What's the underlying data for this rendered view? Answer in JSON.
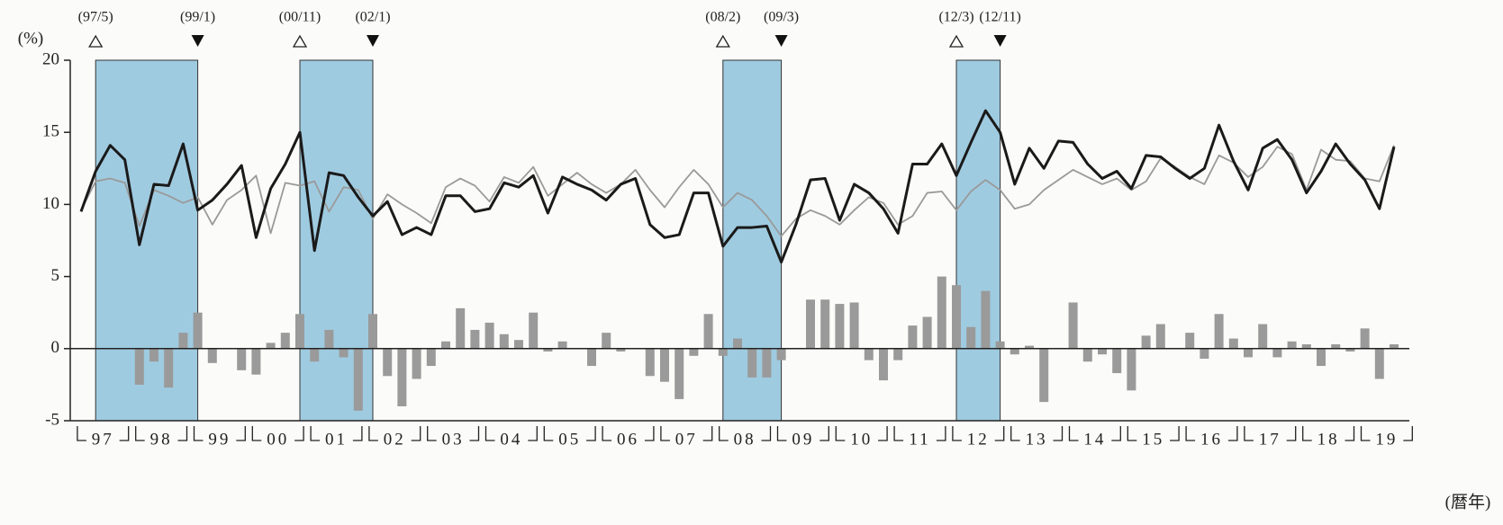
{
  "chart_data": {
    "type": "combo",
    "y_label": "(%)",
    "x_label": "(暦年)",
    "ylim": [
      -5,
      20
    ],
    "yticks": [
      -5,
      0,
      5,
      10,
      15,
      20
    ],
    "categories": [
      null,
      "97",
      null,
      null,
      null,
      "98",
      null,
      null,
      null,
      "99",
      null,
      null,
      null,
      "00",
      null,
      null,
      null,
      "01",
      null,
      null,
      null,
      "02",
      null,
      null,
      null,
      "03",
      null,
      null,
      null,
      "04",
      null,
      null,
      null,
      "05",
      null,
      null,
      null,
      "06",
      null,
      null,
      null,
      "07",
      null,
      null,
      null,
      "08",
      null,
      null,
      null,
      "09",
      null,
      null,
      null,
      "10",
      null,
      null,
      null,
      "11",
      null,
      null,
      null,
      "12",
      null,
      null,
      null,
      "13",
      null,
      null,
      null,
      "14",
      null,
      null,
      null,
      "15",
      null,
      null,
      null,
      "16",
      null,
      null,
      null,
      "17",
      null,
      null,
      null,
      "18",
      null,
      null,
      null,
      "19",
      null
    ],
    "series": [
      {
        "kind": "bar",
        "color": "#9a9a9a",
        "values": [
          0,
          0,
          0,
          0,
          -2.5,
          -0.9,
          -2.7,
          1.1,
          2.5,
          -1.0,
          0,
          -1.5,
          -1.8,
          0.4,
          1.1,
          2.4,
          -0.9,
          1.3,
          -0.6,
          -4.3,
          2.4,
          -1.9,
          -4.0,
          -2.1,
          -1.2,
          0.5,
          2.8,
          1.3,
          1.8,
          1.0,
          0.6,
          2.5,
          -0.2,
          0.5,
          0,
          -1.2,
          1.1,
          -0.2,
          0,
          -1.9,
          -2.3,
          -3.5,
          -0.5,
          2.4,
          -0.5,
          0.7,
          -2.0,
          -2.0,
          -0.8,
          0,
          3.4,
          3.4,
          3.1,
          3.2,
          -0.8,
          -2.2,
          -0.8,
          1.6,
          2.2,
          5.0,
          4.4,
          1.5,
          4.0,
          0.5,
          -0.4,
          0.2,
          -3.7,
          0,
          3.2,
          -0.9,
          -0.4,
          -1.7,
          -2.9,
          0.9,
          1.7,
          0,
          1.1,
          -0.7,
          2.4,
          0.7,
          -0.6,
          1.7,
          -0.6,
          0.5,
          0.3,
          -1.2,
          0.3,
          -0.2,
          1.4,
          -2.1,
          0.3
        ]
      },
      {
        "kind": "line",
        "color": "#9a9a9a",
        "values": [
          9.6,
          11.6,
          11.8,
          11.5,
          8.5,
          11.0,
          10.6,
          10.1,
          10.5,
          8.6,
          10.3,
          11.0,
          12.0,
          8.0,
          11.5,
          11.3,
          11.6,
          9.5,
          11.2,
          11.0,
          9.0,
          10.7,
          10.0,
          9.4,
          8.7,
          11.2,
          11.8,
          11.3,
          10.2,
          11.9,
          11.5,
          12.6,
          10.6,
          11.4,
          12.2,
          11.4,
          10.8,
          11.4,
          12.4,
          11.0,
          9.8,
          11.2,
          12.4,
          11.4,
          9.8,
          10.8,
          10.3,
          9.2,
          7.8,
          9.0,
          9.6,
          9.2,
          8.6,
          9.6,
          10.5,
          10.1,
          8.6,
          9.2,
          10.8,
          10.9,
          9.6,
          10.9,
          11.7,
          11.0,
          9.7,
          10.0,
          11.0,
          11.7,
          12.4,
          11.9,
          11.4,
          11.8,
          11.0,
          11.6,
          13.2,
          12.6,
          11.9,
          11.4,
          13.4,
          12.9,
          11.9,
          12.6,
          14.0,
          13.5,
          11.0,
          13.8,
          13.1,
          13.0,
          11.8,
          11.6,
          14.1
        ]
      },
      {
        "kind": "line",
        "color": "#1a1a1a",
        "values": [
          9.5,
          12.3,
          14.1,
          13.1,
          7.2,
          11.4,
          11.3,
          14.2,
          9.6,
          10.3,
          11.4,
          12.7,
          7.7,
          11.1,
          12.8,
          15.0,
          6.8,
          12.2,
          12.0,
          10.5,
          9.2,
          10.2,
          7.9,
          8.4,
          7.9,
          10.6,
          10.6,
          9.5,
          9.7,
          11.5,
          11.2,
          12.0,
          9.4,
          11.9,
          11.4,
          11.0,
          10.3,
          11.4,
          11.8,
          8.6,
          7.7,
          7.9,
          10.8,
          10.8,
          7.1,
          8.4,
          8.4,
          8.5,
          6.0,
          8.6,
          11.7,
          11.8,
          8.9,
          11.4,
          10.8,
          9.7,
          8.0,
          12.8,
          12.8,
          14.2,
          12.0,
          14.3,
          16.5,
          15.0,
          11.4,
          13.9,
          12.5,
          14.4,
          14.3,
          12.8,
          11.8,
          12.3,
          11.1,
          13.4,
          13.3,
          12.5,
          11.8,
          12.5,
          15.5,
          13.0,
          11.0,
          13.9,
          14.5,
          13.1,
          10.8,
          12.3,
          14.2,
          12.8,
          11.7,
          9.7,
          14.0
        ]
      }
    ],
    "periods": [
      {
        "start": "(97/5)",
        "end": "(99/1)"
      },
      {
        "start": "(00/11)",
        "end": "(02/1)"
      },
      {
        "start": "(08/2)",
        "end": "(09/3)"
      },
      {
        "start": "(12/3)",
        "end": "(12/11)"
      }
    ],
    "period_color": "#9fcbe0"
  }
}
